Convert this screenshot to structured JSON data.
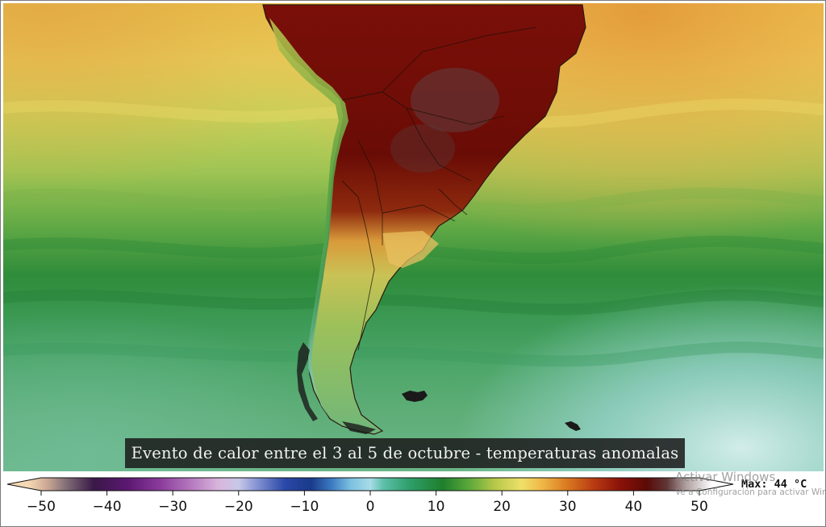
{
  "caption": "Evento de calor entre el 3 al 5 de octubre - temperaturas anomalas",
  "colorbar": {
    "ticks": [
      "−50",
      "−40",
      "−30",
      "−20",
      "−10",
      "0",
      "10",
      "20",
      "30",
      "40",
      "50"
    ],
    "tick_values": [
      -50,
      -40,
      -30,
      -20,
      -10,
      0,
      10,
      20,
      30,
      40,
      50
    ],
    "range": [
      -50,
      50
    ],
    "unit": "°C",
    "max_label": "Max: 44 °C",
    "stops": [
      {
        "v": -52,
        "c": "#f6d9b4"
      },
      {
        "v": -49,
        "c": "#c9a793"
      },
      {
        "v": -46,
        "c": "#7c6a74"
      },
      {
        "v": -42,
        "c": "#3a1848"
      },
      {
        "v": -37,
        "c": "#5a1870"
      },
      {
        "v": -32,
        "c": "#8a3a9a"
      },
      {
        "v": -27,
        "c": "#b77cc0"
      },
      {
        "v": -23,
        "c": "#d9b6dc"
      },
      {
        "v": -20,
        "c": "#c8c8e8"
      },
      {
        "v": -17,
        "c": "#7f8fd0"
      },
      {
        "v": -13,
        "c": "#2a48a8"
      },
      {
        "v": -9,
        "c": "#1a3a8a"
      },
      {
        "v": -6,
        "c": "#3a78c0"
      },
      {
        "v": -3,
        "c": "#7cc0e0"
      },
      {
        "v": 0,
        "c": "#a8dce8"
      },
      {
        "v": 2,
        "c": "#5cbfa8"
      },
      {
        "v": 6,
        "c": "#2e9e6a"
      },
      {
        "v": 11,
        "c": "#1f7f2c"
      },
      {
        "v": 15,
        "c": "#5aa83a"
      },
      {
        "v": 19,
        "c": "#b8c94a"
      },
      {
        "v": 23,
        "c": "#efe068"
      },
      {
        "v": 26,
        "c": "#f0b848"
      },
      {
        "v": 30,
        "c": "#d9781f"
      },
      {
        "v": 34,
        "c": "#b83a12"
      },
      {
        "v": 38,
        "c": "#8a1208"
      },
      {
        "v": 42,
        "c": "#5c0a06"
      },
      {
        "v": 45,
        "c": "#5e3636"
      },
      {
        "v": 48,
        "c": "#b0a0a0"
      },
      {
        "v": 52,
        "c": "#ffffff"
      }
    ]
  },
  "watermark": {
    "line1": "Activar Windows",
    "line2": "Ve a Configuración para activar Windows."
  },
  "map": {
    "features": [
      "ocean-temperature-field",
      "south-america-landmass",
      "falkland-islands",
      "south-georgia-island",
      "country-borders"
    ]
  }
}
